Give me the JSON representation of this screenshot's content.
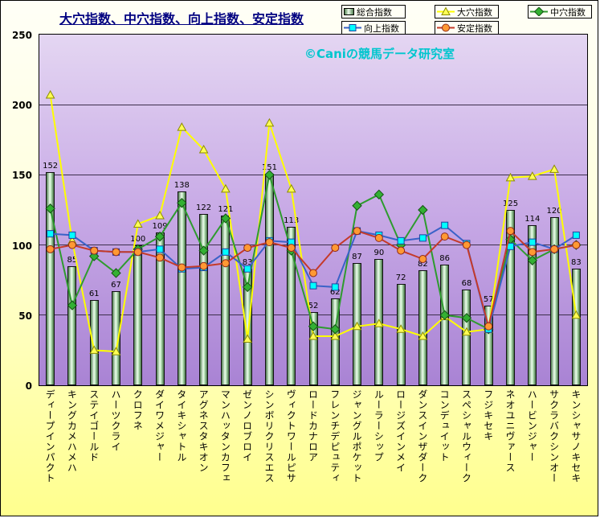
{
  "title": "大穴指数、中穴指数、向上指数、安定指数",
  "watermark": "©Caniの競馬データ研究室",
  "legend": {
    "rows": [
      [
        "総合指数",
        "大穴指数",
        "中穴指数"
      ],
      [
        "向上指数",
        "安定指数"
      ]
    ]
  },
  "chart_data": {
    "type": "bar",
    "title": "大穴指数、中穴指数、向上指数、安定指数",
    "xlabel": "",
    "ylabel": "",
    "ylim": [
      0,
      250
    ],
    "yticks": [
      0,
      50,
      100,
      150,
      200,
      250
    ],
    "grid": true,
    "legend_position": "top-right",
    "plot_background": "#C8AAE6",
    "page_background": "#FFFF8E",
    "categories": [
      "ディープインパクト",
      "キングカメハメハ",
      "ステイゴールド",
      "ハーツクライ",
      "クロフネ",
      "ダイワメジャー",
      "タイキシャトル",
      "アグネスタキオン",
      "マンハッタンカフェ",
      "ゼンノロブロイ",
      "シンボリクリスエス",
      "ヴィクトワールピサ",
      "ロードカナロア",
      "フレンチデピュティ",
      "ジャングルポケット",
      "ルーラーシップ",
      "ロージズインメイ",
      "ダンスインザダーク",
      "コンデュイット",
      "スペシャルウィーク",
      "フジキセキ",
      "ネオユニヴァース",
      "ハービンジャー",
      "サクラバクシンオー",
      "キンシャサノキセキ"
    ],
    "series": [
      {
        "key": "total",
        "name": "総合指数",
        "type": "bar",
        "color": "#EDFCED",
        "edge_color": "#4F7F4F",
        "values": [
          152,
          85,
          61,
          67,
          100,
          109,
          138,
          122,
          121,
          83,
          151,
          113,
          52,
          62,
          87,
          90,
          72,
          82,
          86,
          68,
          57,
          125,
          114,
          120,
          83
        ],
        "data_labels": true
      },
      {
        "key": "ooana",
        "name": "大穴指数",
        "type": "line",
        "marker": "triangle",
        "color": "#FFFF00",
        "marker_fill": "#FFFF55",
        "marker_stroke": "#8B8B00",
        "values": [
          207,
          103,
          25,
          24,
          115,
          121,
          184,
          168,
          140,
          33,
          187,
          140,
          35,
          35,
          42,
          44,
          40,
          35,
          49,
          38,
          40,
          148,
          149,
          154,
          50
        ]
      },
      {
        "key": "chuuana",
        "name": "中穴指数",
        "type": "line",
        "marker": "diamond",
        "color": "#2E9B2E",
        "marker_fill": "#33B033",
        "marker_stroke": "#145214",
        "values": [
          126,
          57,
          92,
          80,
          97,
          106,
          130,
          96,
          119,
          70,
          150,
          96,
          42,
          40,
          128,
          136,
          100,
          125,
          50,
          48,
          40,
          104,
          89,
          97,
          100
        ]
      },
      {
        "key": "koujou",
        "name": "向上指数",
        "type": "line",
        "marker": "square",
        "color": "#3A62C8",
        "marker_fill": "#00FFFF",
        "marker_stroke": "#1F3F9F",
        "values": [
          108,
          107,
          96,
          95,
          95,
          97,
          83,
          84,
          95,
          83,
          103,
          102,
          71,
          70,
          110,
          107,
          103,
          105,
          114,
          101,
          40,
          99,
          102,
          97,
          107
        ]
      },
      {
        "key": "antei",
        "name": "安定指数",
        "type": "line",
        "marker": "circle",
        "color": "#C53A2A",
        "marker_fill": "#FF9933",
        "marker_stroke": "#8F2A1A",
        "values": [
          97,
          100,
          96,
          95,
          95,
          91,
          84,
          85,
          87,
          98,
          102,
          98,
          80,
          98,
          110,
          105,
          96,
          90,
          106,
          100,
          42,
          110,
          95,
          97,
          100
        ]
      }
    ]
  }
}
